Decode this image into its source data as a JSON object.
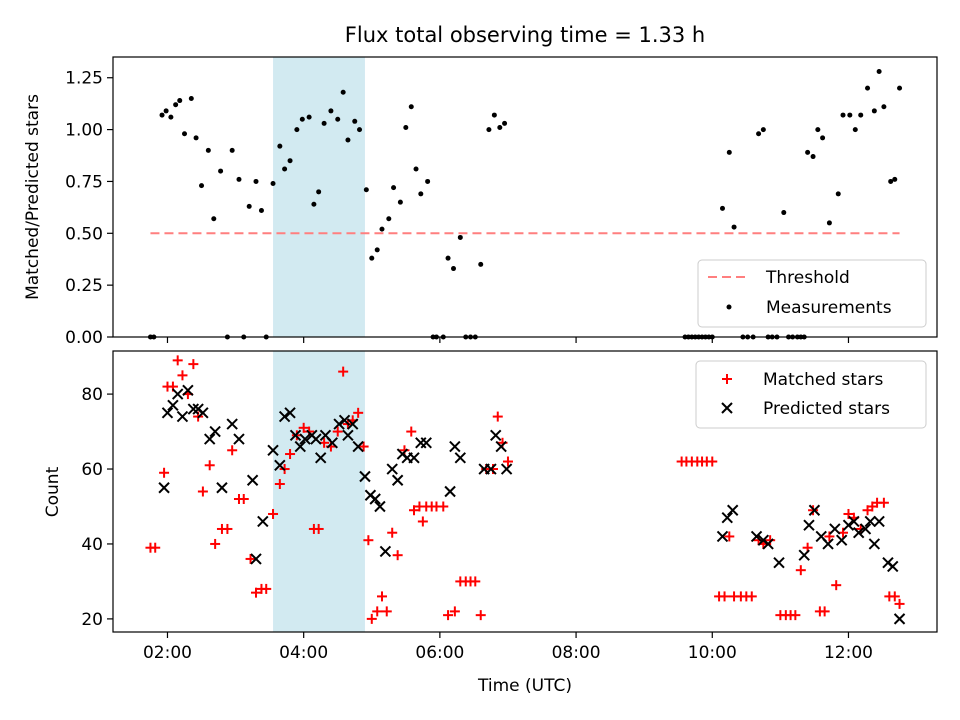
{
  "chart_data": {
    "type": "scatter",
    "title": "Flux total observing time = 1.33 h",
    "xlabel": "Time (UTC)",
    "x_unit": "hours UTC",
    "x_ticks": [
      2,
      4,
      6,
      8,
      10,
      12
    ],
    "x_tick_labels": [
      "02:00",
      "04:00",
      "06:00",
      "08:00",
      "10:00",
      "12:00"
    ],
    "xlim": [
      1.2,
      13.3
    ],
    "highlight_span": {
      "x_start": 3.55,
      "x_end": 4.9,
      "color": "#add8e6"
    },
    "colors": {
      "threshold": "#ff7f7f",
      "measurements": "#000000",
      "matched": "#ff0000",
      "predicted": "#000000"
    },
    "panels": [
      {
        "id": "ratio",
        "ylabel": "Matched/Predicted stars",
        "ylim": [
          0,
          1.35
        ],
        "y_ticks": [
          0,
          0.25,
          0.5,
          0.75,
          1.0,
          1.25
        ],
        "y_tick_labels": [
          "0.00",
          "0.25",
          "0.50",
          "0.75",
          "1.00",
          "1.25"
        ],
        "legend": [
          "Threshold",
          "Measurements"
        ],
        "threshold": {
          "x_start": 1.75,
          "x_end": 12.75,
          "y": 0.5
        },
        "measurements": [
          [
            1.75,
            0.0
          ],
          [
            1.8,
            0.0
          ],
          [
            1.92,
            1.07
          ],
          [
            1.98,
            1.09
          ],
          [
            2.05,
            1.06
          ],
          [
            2.12,
            1.12
          ],
          [
            2.18,
            1.14
          ],
          [
            2.25,
            0.98
          ],
          [
            2.35,
            1.15
          ],
          [
            2.42,
            0.96
          ],
          [
            2.5,
            0.73
          ],
          [
            2.6,
            0.9
          ],
          [
            2.68,
            0.57
          ],
          [
            2.78,
            0.8
          ],
          [
            2.88,
            0.0
          ],
          [
            2.95,
            0.9
          ],
          [
            3.05,
            0.76
          ],
          [
            3.12,
            0.0
          ],
          [
            3.2,
            0.63
          ],
          [
            3.3,
            0.75
          ],
          [
            3.38,
            0.61
          ],
          [
            3.45,
            0.0
          ],
          [
            3.55,
            0.74
          ],
          [
            3.65,
            0.92
          ],
          [
            3.72,
            0.81
          ],
          [
            3.8,
            0.85
          ],
          [
            3.9,
            1.0
          ],
          [
            3.98,
            1.05
          ],
          [
            4.08,
            1.06
          ],
          [
            4.15,
            0.64
          ],
          [
            4.22,
            0.7
          ],
          [
            4.3,
            1.03
          ],
          [
            4.4,
            1.09
          ],
          [
            4.5,
            1.05
          ],
          [
            4.58,
            1.18
          ],
          [
            4.65,
            0.95
          ],
          [
            4.75,
            1.04
          ],
          [
            4.82,
            1.0
          ],
          [
            4.92,
            0.71
          ],
          [
            5.0,
            0.38
          ],
          [
            5.08,
            0.42
          ],
          [
            5.15,
            0.52
          ],
          [
            5.25,
            0.57
          ],
          [
            5.32,
            0.72
          ],
          [
            5.42,
            0.65
          ],
          [
            5.5,
            1.01
          ],
          [
            5.58,
            1.11
          ],
          [
            5.65,
            0.81
          ],
          [
            5.72,
            0.69
          ],
          [
            5.82,
            0.75
          ],
          [
            5.9,
            0.0
          ],
          [
            5.95,
            0.0
          ],
          [
            6.05,
            0.0
          ],
          [
            6.12,
            0.38
          ],
          [
            6.2,
            0.33
          ],
          [
            6.3,
            0.48
          ],
          [
            6.38,
            0.0
          ],
          [
            6.45,
            0.0
          ],
          [
            6.52,
            0.0
          ],
          [
            6.6,
            0.35
          ],
          [
            6.72,
            1.0
          ],
          [
            6.8,
            1.07
          ],
          [
            6.88,
            1.01
          ],
          [
            6.95,
            1.03
          ],
          [
            9.6,
            0.0
          ],
          [
            9.65,
            0.0
          ],
          [
            9.7,
            0.0
          ],
          [
            9.75,
            0.0
          ],
          [
            9.8,
            0.0
          ],
          [
            9.85,
            0.0
          ],
          [
            9.9,
            0.0
          ],
          [
            9.95,
            0.0
          ],
          [
            10.0,
            0.0
          ],
          [
            10.15,
            0.62
          ],
          [
            10.25,
            0.89
          ],
          [
            10.32,
            0.53
          ],
          [
            10.45,
            0.0
          ],
          [
            10.52,
            0.0
          ],
          [
            10.6,
            0.0
          ],
          [
            10.68,
            0.98
          ],
          [
            10.75,
            1.0
          ],
          [
            10.82,
            0.0
          ],
          [
            10.88,
            0.0
          ],
          [
            10.95,
            0.0
          ],
          [
            11.05,
            0.6
          ],
          [
            11.12,
            0.0
          ],
          [
            11.18,
            0.0
          ],
          [
            11.25,
            0.0
          ],
          [
            11.3,
            0.0
          ],
          [
            11.35,
            0.0
          ],
          [
            11.4,
            0.89
          ],
          [
            11.48,
            0.87
          ],
          [
            11.55,
            1.0
          ],
          [
            11.62,
            0.96
          ],
          [
            11.72,
            0.55
          ],
          [
            11.85,
            0.69
          ],
          [
            11.92,
            1.07
          ],
          [
            12.02,
            1.07
          ],
          [
            12.1,
            1.0
          ],
          [
            12.18,
            1.07
          ],
          [
            12.28,
            1.2
          ],
          [
            12.38,
            1.09
          ],
          [
            12.45,
            1.28
          ],
          [
            12.52,
            1.11
          ],
          [
            12.62,
            0.75
          ],
          [
            12.68,
            0.76
          ],
          [
            12.75,
            1.2
          ]
        ]
      },
      {
        "id": "count",
        "ylabel": "Count",
        "ylim": [
          16.5,
          91.5
        ],
        "y_ticks": [
          20,
          40,
          60,
          80
        ],
        "y_tick_labels": [
          "20",
          "40",
          "60",
          "80"
        ],
        "legend": [
          "Matched stars",
          "Predicted stars"
        ],
        "matched": [
          [
            1.75,
            39
          ],
          [
            1.82,
            39
          ],
          [
            1.95,
            59
          ],
          [
            2.0,
            82
          ],
          [
            2.08,
            82
          ],
          [
            2.15,
            89
          ],
          [
            2.22,
            85
          ],
          [
            2.3,
            80
          ],
          [
            2.38,
            88
          ],
          [
            2.45,
            74
          ],
          [
            2.52,
            54
          ],
          [
            2.62,
            61
          ],
          [
            2.7,
            40
          ],
          [
            2.8,
            44
          ],
          [
            2.88,
            44
          ],
          [
            2.95,
            65
          ],
          [
            3.05,
            52
          ],
          [
            3.12,
            52
          ],
          [
            3.22,
            36
          ],
          [
            3.3,
            27
          ],
          [
            3.38,
            28
          ],
          [
            3.45,
            28
          ],
          [
            3.55,
            48
          ],
          [
            3.65,
            56
          ],
          [
            3.72,
            60
          ],
          [
            3.8,
            64
          ],
          [
            3.9,
            69
          ],
          [
            4.0,
            71
          ],
          [
            4.08,
            70
          ],
          [
            4.15,
            44
          ],
          [
            4.22,
            44
          ],
          [
            4.3,
            67
          ],
          [
            4.4,
            66
          ],
          [
            4.5,
            70
          ],
          [
            4.58,
            86
          ],
          [
            4.65,
            72
          ],
          [
            4.72,
            73
          ],
          [
            4.8,
            75
          ],
          [
            4.88,
            66
          ],
          [
            4.95,
            41
          ],
          [
            5.0,
            20
          ],
          [
            5.08,
            22
          ],
          [
            5.15,
            26
          ],
          [
            5.22,
            22
          ],
          [
            5.3,
            43
          ],
          [
            5.38,
            37
          ],
          [
            5.48,
            65
          ],
          [
            5.58,
            70
          ],
          [
            5.62,
            49
          ],
          [
            5.7,
            50
          ],
          [
            5.75,
            46
          ],
          [
            5.8,
            50
          ],
          [
            5.88,
            50
          ],
          [
            5.95,
            50
          ],
          [
            6.05,
            50
          ],
          [
            6.12,
            21
          ],
          [
            6.22,
            22
          ],
          [
            6.3,
            30
          ],
          [
            6.38,
            30
          ],
          [
            6.45,
            30
          ],
          [
            6.52,
            30
          ],
          [
            6.6,
            21
          ],
          [
            6.68,
            60
          ],
          [
            6.78,
            60
          ],
          [
            6.85,
            74
          ],
          [
            6.92,
            67
          ],
          [
            7.0,
            62
          ],
          [
            9.55,
            62
          ],
          [
            9.62,
            62
          ],
          [
            9.7,
            62
          ],
          [
            9.78,
            62
          ],
          [
            9.85,
            62
          ],
          [
            9.92,
            62
          ],
          [
            10.0,
            62
          ],
          [
            10.1,
            26
          ],
          [
            10.18,
            26
          ],
          [
            10.25,
            42
          ],
          [
            10.32,
            26
          ],
          [
            10.42,
            26
          ],
          [
            10.5,
            26
          ],
          [
            10.58,
            26
          ],
          [
            10.68,
            41
          ],
          [
            10.75,
            40
          ],
          [
            10.85,
            41
          ],
          [
            11.0,
            21
          ],
          [
            11.08,
            21
          ],
          [
            11.15,
            21
          ],
          [
            11.22,
            21
          ],
          [
            11.3,
            33
          ],
          [
            11.4,
            39
          ],
          [
            11.48,
            49
          ],
          [
            11.58,
            22
          ],
          [
            11.65,
            22
          ],
          [
            11.72,
            42
          ],
          [
            11.82,
            29
          ],
          [
            11.92,
            43
          ],
          [
            12.0,
            48
          ],
          [
            12.08,
            47
          ],
          [
            12.18,
            44
          ],
          [
            12.28,
            49
          ],
          [
            12.35,
            50
          ],
          [
            12.42,
            51
          ],
          [
            12.52,
            51
          ],
          [
            12.6,
            26
          ],
          [
            12.68,
            26
          ],
          [
            12.75,
            24
          ]
        ],
        "predicted": [
          [
            1.95,
            55
          ],
          [
            2.0,
            75
          ],
          [
            2.08,
            77
          ],
          [
            2.15,
            80
          ],
          [
            2.22,
            74
          ],
          [
            2.3,
            81
          ],
          [
            2.38,
            76
          ],
          [
            2.45,
            76
          ],
          [
            2.52,
            75
          ],
          [
            2.62,
            68
          ],
          [
            2.7,
            70
          ],
          [
            2.8,
            55
          ],
          [
            2.95,
            72
          ],
          [
            3.05,
            68
          ],
          [
            3.25,
            57
          ],
          [
            3.3,
            36
          ],
          [
            3.4,
            46
          ],
          [
            3.55,
            65
          ],
          [
            3.65,
            61
          ],
          [
            3.72,
            74
          ],
          [
            3.8,
            75
          ],
          [
            3.88,
            69
          ],
          [
            3.95,
            66
          ],
          [
            4.02,
            68
          ],
          [
            4.12,
            69
          ],
          [
            4.18,
            68
          ],
          [
            4.25,
            63
          ],
          [
            4.32,
            69
          ],
          [
            4.42,
            67
          ],
          [
            4.52,
            72
          ],
          [
            4.6,
            73
          ],
          [
            4.65,
            69
          ],
          [
            4.72,
            72
          ],
          [
            4.8,
            66
          ],
          [
            4.9,
            58
          ],
          [
            4.98,
            53
          ],
          [
            5.05,
            52
          ],
          [
            5.12,
            50
          ],
          [
            5.2,
            38
          ],
          [
            5.3,
            60
          ],
          [
            5.38,
            57
          ],
          [
            5.45,
            64
          ],
          [
            5.52,
            63
          ],
          [
            5.62,
            63
          ],
          [
            5.72,
            67
          ],
          [
            5.8,
            67
          ],
          [
            6.15,
            54
          ],
          [
            6.22,
            66
          ],
          [
            6.3,
            63
          ],
          [
            6.65,
            60
          ],
          [
            6.75,
            60
          ],
          [
            6.82,
            69
          ],
          [
            6.9,
            66
          ],
          [
            6.98,
            60
          ],
          [
            10.15,
            42
          ],
          [
            10.22,
            47
          ],
          [
            10.3,
            49
          ],
          [
            10.65,
            42
          ],
          [
            10.75,
            41
          ],
          [
            10.82,
            40
          ],
          [
            10.98,
            35
          ],
          [
            11.35,
            37
          ],
          [
            11.42,
            45
          ],
          [
            11.5,
            49
          ],
          [
            11.6,
            42
          ],
          [
            11.7,
            40
          ],
          [
            11.8,
            44
          ],
          [
            11.9,
            41
          ],
          [
            12.0,
            45
          ],
          [
            12.08,
            46
          ],
          [
            12.15,
            43
          ],
          [
            12.25,
            44
          ],
          [
            12.32,
            46
          ],
          [
            12.38,
            40
          ],
          [
            12.45,
            46
          ],
          [
            12.58,
            35
          ],
          [
            12.65,
            34
          ],
          [
            12.75,
            20
          ]
        ]
      }
    ]
  }
}
